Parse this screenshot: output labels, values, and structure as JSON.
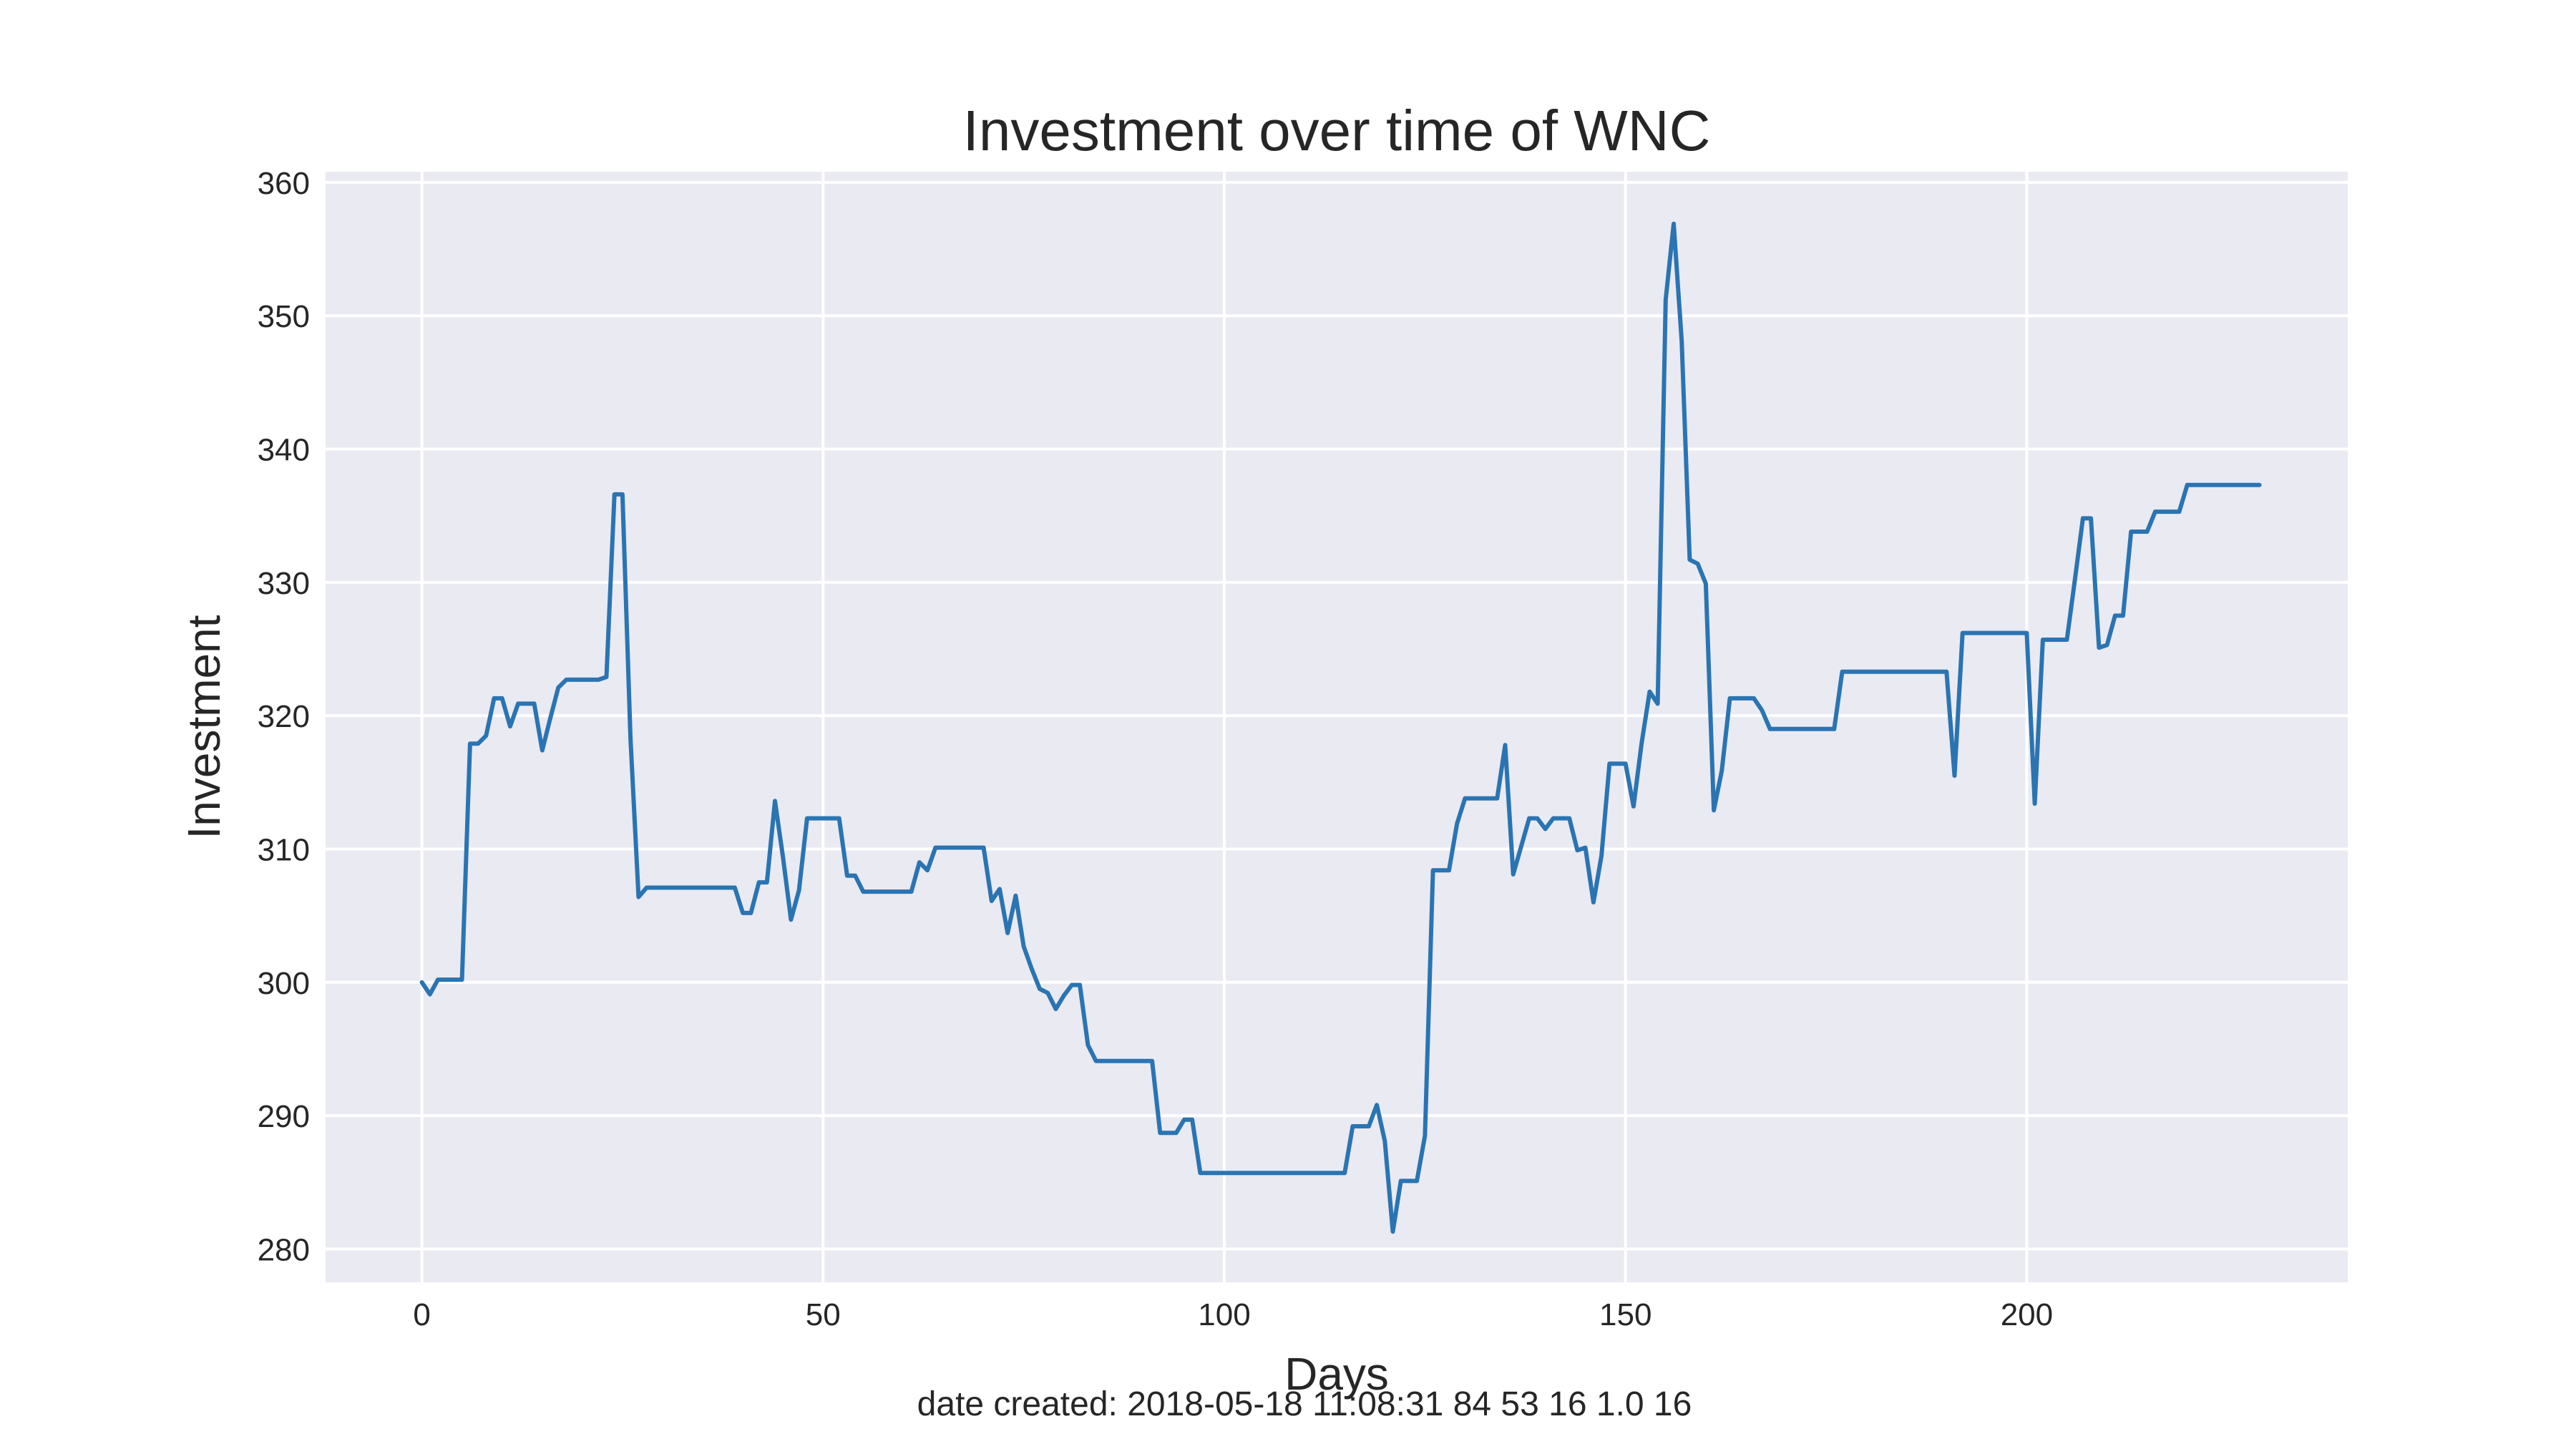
{
  "chart_data": {
    "type": "line",
    "title": "Investment over time of WNC",
    "xlabel": "Days",
    "ylabel": "Investment",
    "xlim": [
      -12,
      240
    ],
    "ylim": [
      277.5,
      360.8
    ],
    "xticks": [
      0,
      50,
      100,
      150,
      200
    ],
    "yticks": [
      280,
      290,
      300,
      310,
      320,
      330,
      340,
      350,
      360
    ],
    "grid": true,
    "legend": "none",
    "colors": {
      "line": "#2a74b2",
      "plot_background": "#eaeaf2",
      "grid": "#ffffff"
    },
    "series": [
      {
        "points": [
          [
            0,
            300.0
          ],
          [
            1,
            299.1
          ],
          [
            2,
            300.2
          ],
          [
            5,
            300.2
          ],
          [
            6,
            317.9
          ],
          [
            7,
            317.9
          ],
          [
            8,
            318.5
          ],
          [
            9,
            321.3
          ],
          [
            10,
            321.3
          ],
          [
            11,
            319.2
          ],
          [
            12,
            320.9
          ],
          [
            14,
            320.9
          ],
          [
            15,
            317.4
          ],
          [
            16,
            319.8
          ],
          [
            17,
            322.1
          ],
          [
            18,
            322.7
          ],
          [
            22,
            322.7
          ],
          [
            23,
            322.9
          ],
          [
            24,
            336.6
          ],
          [
            25,
            336.6
          ],
          [
            26,
            318.3
          ],
          [
            27,
            306.4
          ],
          [
            28,
            307.1
          ],
          [
            39,
            307.1
          ],
          [
            40,
            305.2
          ],
          [
            41,
            305.2
          ],
          [
            42,
            307.5
          ],
          [
            43,
            307.5
          ],
          [
            44,
            313.6
          ],
          [
            45,
            309.4
          ],
          [
            46,
            304.7
          ],
          [
            47,
            306.9
          ],
          [
            48,
            312.3
          ],
          [
            52,
            312.3
          ],
          [
            53,
            308.0
          ],
          [
            54,
            308.0
          ],
          [
            55,
            306.8
          ],
          [
            61,
            306.8
          ],
          [
            62,
            309.0
          ],
          [
            63,
            308.4
          ],
          [
            64,
            310.1
          ],
          [
            70,
            310.1
          ],
          [
            71,
            306.1
          ],
          [
            72,
            307.0
          ],
          [
            73,
            303.7
          ],
          [
            74,
            306.5
          ],
          [
            75,
            302.7
          ],
          [
            76,
            301.0
          ],
          [
            77,
            299.5
          ],
          [
            78,
            299.2
          ],
          [
            79,
            298.0
          ],
          [
            80,
            299.0
          ],
          [
            81,
            299.8
          ],
          [
            82,
            299.8
          ],
          [
            83,
            295.3
          ],
          [
            84,
            294.1
          ],
          [
            91,
            294.1
          ],
          [
            92,
            288.7
          ],
          [
            94,
            288.7
          ],
          [
            95,
            289.7
          ],
          [
            96,
            289.7
          ],
          [
            97,
            285.7
          ],
          [
            115,
            285.7
          ],
          [
            116,
            289.2
          ],
          [
            118,
            289.2
          ],
          [
            119,
            290.8
          ],
          [
            120,
            288.1
          ],
          [
            121,
            281.3
          ],
          [
            122,
            285.1
          ],
          [
            124,
            285.1
          ],
          [
            125,
            288.5
          ],
          [
            126,
            308.4
          ],
          [
            128,
            308.4
          ],
          [
            129,
            311.9
          ],
          [
            130,
            313.8
          ],
          [
            134,
            313.8
          ],
          [
            135,
            317.8
          ],
          [
            136,
            308.1
          ],
          [
            137,
            310.2
          ],
          [
            138,
            312.3
          ],
          [
            139,
            312.3
          ],
          [
            140,
            311.5
          ],
          [
            141,
            312.3
          ],
          [
            143,
            312.3
          ],
          [
            144,
            309.9
          ],
          [
            145,
            310.1
          ],
          [
            146,
            306.0
          ],
          [
            147,
            309.5
          ],
          [
            148,
            316.4
          ],
          [
            150,
            316.4
          ],
          [
            151,
            313.2
          ],
          [
            152,
            317.9
          ],
          [
            153,
            321.8
          ],
          [
            154,
            320.9
          ],
          [
            155,
            351.2
          ],
          [
            156,
            356.9
          ],
          [
            157,
            348.1
          ],
          [
            158,
            331.7
          ],
          [
            159,
            331.4
          ],
          [
            160,
            329.9
          ],
          [
            161,
            312.9
          ],
          [
            162,
            315.9
          ],
          [
            163,
            321.3
          ],
          [
            166,
            321.3
          ],
          [
            167,
            320.4
          ],
          [
            168,
            319.0
          ],
          [
            176,
            319.0
          ],
          [
            177,
            323.3
          ],
          [
            190,
            323.3
          ],
          [
            191,
            315.5
          ],
          [
            192,
            326.2
          ],
          [
            200,
            326.2
          ],
          [
            201,
            313.4
          ],
          [
            202,
            325.7
          ],
          [
            205,
            325.7
          ],
          [
            206,
            330.2
          ],
          [
            207,
            334.8
          ],
          [
            208,
            334.8
          ],
          [
            209,
            325.1
          ],
          [
            210,
            325.3
          ],
          [
            211,
            327.5
          ],
          [
            212,
            327.5
          ],
          [
            213,
            333.8
          ],
          [
            215,
            333.8
          ],
          [
            216,
            335.3
          ],
          [
            219,
            335.3
          ],
          [
            220,
            337.3
          ],
          [
            229,
            337.3
          ]
        ]
      }
    ]
  },
  "footer": "date created: 2018-05-18 11:08:31 84 53 16 1.0 16"
}
